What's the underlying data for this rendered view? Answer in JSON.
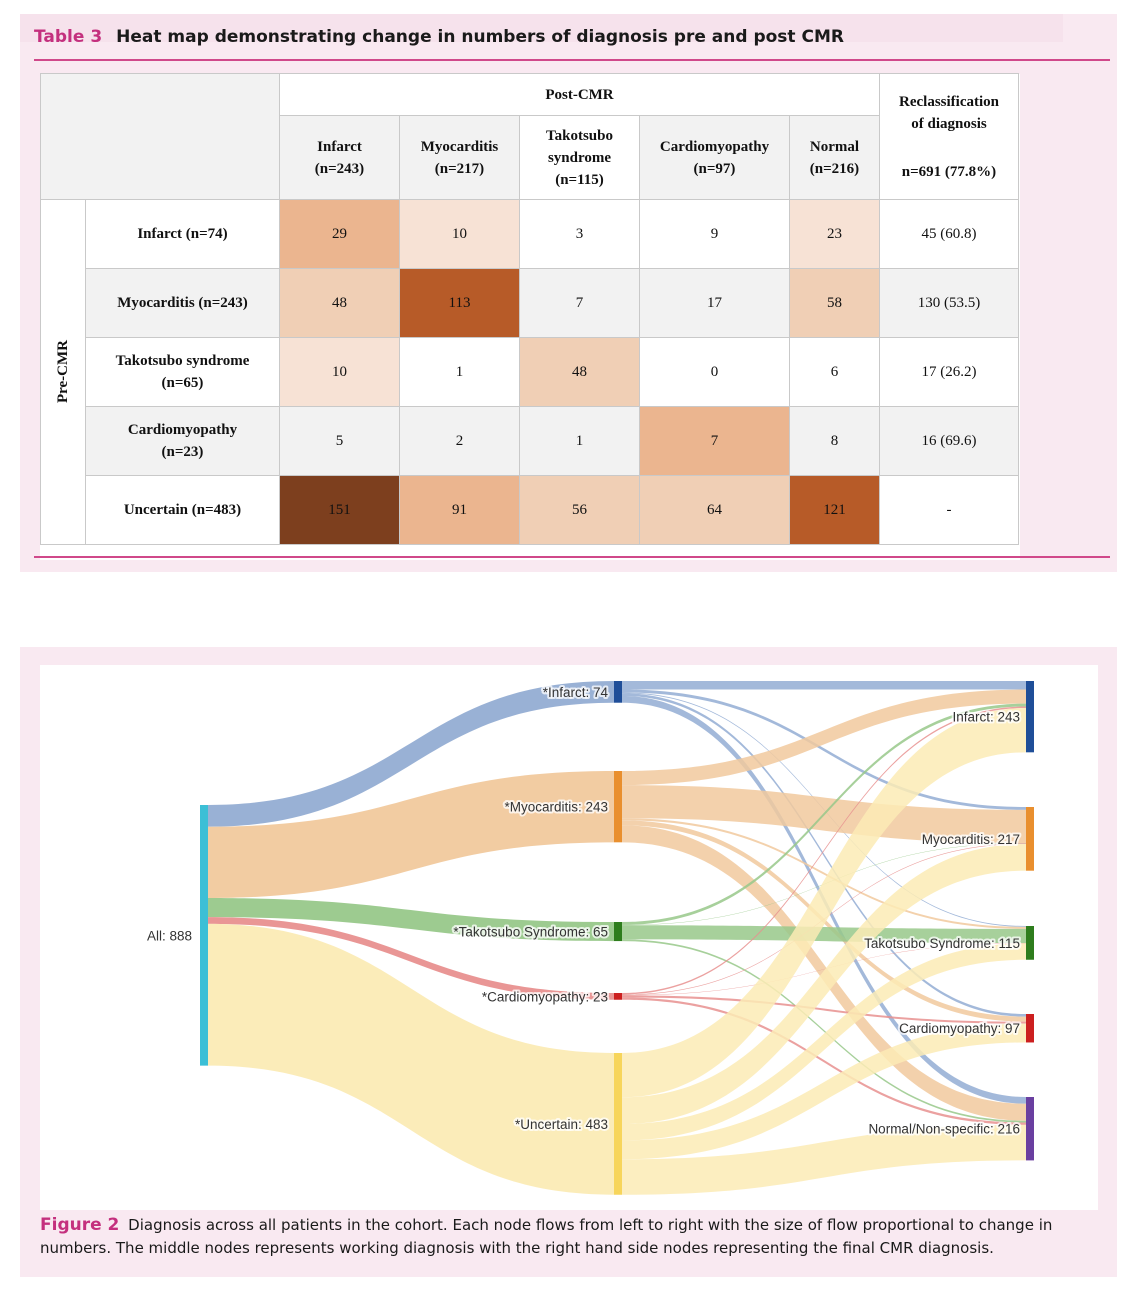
{
  "table": {
    "label": "Table 3",
    "title": "Heat map demonstrating change in numbers of diagnosis pre and post CMR",
    "post_header": "Post-CMR",
    "pre_header": "Pre-CMR",
    "reclass_header_1": "Reclassification",
    "reclass_header_2": "of diagnosis",
    "reclass_total": "n=691 (77.8%)",
    "columns": [
      {
        "l1": "Infarct",
        "l2": "",
        "l3": "(n=243)"
      },
      {
        "l1": "Myocarditis",
        "l2": "",
        "l3": "(n=217)"
      },
      {
        "l1": "Takotsubo",
        "l2": "syndrome",
        "l3": "(n=115)"
      },
      {
        "l1": "Cardiomyopathy",
        "l2": "",
        "l3": "(n=97)"
      },
      {
        "l1": "Normal",
        "l2": "",
        "l3": "(n=216)"
      }
    ],
    "rows": [
      {
        "l1": "Infarct (n=74)",
        "l2": "",
        "values": [
          "29",
          "10",
          "3",
          "9",
          "23"
        ],
        "reclass": "45 (60.8)"
      },
      {
        "l1": "Myocarditis (n=243)",
        "l2": "",
        "values": [
          "48",
          "113",
          "7",
          "17",
          "58"
        ],
        "reclass": "130 (53.5)"
      },
      {
        "l1": "Takotsubo syndrome",
        "l2": "(n=65)",
        "values": [
          "10",
          "1",
          "48",
          "0",
          "6"
        ],
        "reclass": "17 (26.2)"
      },
      {
        "l1": "Cardiomyopathy",
        "l2": "(n=23)",
        "values": [
          "5",
          "2",
          "1",
          "7",
          "8"
        ],
        "reclass": "16 (69.6)"
      },
      {
        "l1": "Uncertain (n=483)",
        "l2": "",
        "values": [
          "151",
          "91",
          "56",
          "64",
          "121"
        ],
        "reclass": "-"
      }
    ],
    "cell_colors": [
      [
        "#ebb58f",
        "#f7e2d5",
        "#ffffff",
        "#ffffff",
        "#f7e2d5"
      ],
      [
        "#f0cfb5",
        "#b75b28",
        "#f2f2f2",
        "#f2f2f2",
        "#f0cfb5"
      ],
      [
        "#f7e2d5",
        "#ffffff",
        "#f0cfb5",
        "#ffffff",
        "#ffffff"
      ],
      [
        "#f2f2f2",
        "#f2f2f2",
        "#f2f2f2",
        "#ebb58f",
        "#f2f2f2"
      ],
      [
        "#7d3f1e",
        "#ebb58f",
        "#f0cfb5",
        "#f0cfb5",
        "#b75b28"
      ]
    ]
  },
  "figure": {
    "label": "Figure 2",
    "caption": "Diagnosis across all patients in the cohort. Each node flows from left to right with the size of flow proportional to change in numbers. The middle nodes represents working diagnosis with the right hand side nodes representing the final CMR diagnosis.",
    "chart_data": {
      "type": "sankey",
      "source_node": {
        "label": "All: 888",
        "value": 888,
        "color": "#3cbfd6"
      },
      "middle_nodes": [
        {
          "id": "inf",
          "label": "*Infarct: 74",
          "value": 74,
          "color": "#1f4e98",
          "flow": "#93add3"
        },
        {
          "id": "myo",
          "label": "*Myocarditis: 243",
          "value": 243,
          "color": "#e98f2e",
          "flow": "#f1c99d"
        },
        {
          "id": "tak",
          "label": "*Takotsubo Syndrome: 65",
          "value": 65,
          "color": "#2e7d1d",
          "flow": "#98c88a"
        },
        {
          "id": "car",
          "label": "*Cardiomyopathy: 23",
          "value": 23,
          "color": "#cc1f1f",
          "flow": "#e8908f"
        },
        {
          "id": "unc",
          "label": "*Uncertain: 483",
          "value": 483,
          "color": "#f7d55b",
          "flow": "#fbebb5"
        }
      ],
      "final_nodes": [
        {
          "id": "inf",
          "label": "Infarct: 243",
          "value": 243,
          "color": "#1f4e98",
          "flow": "#93add3"
        },
        {
          "id": "myo",
          "label": "Myocarditis: 217",
          "value": 217,
          "color": "#e98f2e",
          "flow": "#f1c99d"
        },
        {
          "id": "tak",
          "label": "Takotsubo Syndrome: 115",
          "value": 115,
          "color": "#2e7d1d",
          "flow": "#98c88a"
        },
        {
          "id": "car",
          "label": "Cardiomyopathy: 97",
          "value": 97,
          "color": "#cc1f1f",
          "flow": "#e8908f"
        },
        {
          "id": "nor",
          "label": "Normal/Non-specific: 216",
          "value": 216,
          "color": "#6a3fa0",
          "flow": "#b79ad6"
        }
      ],
      "matrix": [
        [
          29,
          10,
          3,
          9,
          23
        ],
        [
          48,
          113,
          7,
          17,
          58
        ],
        [
          10,
          1,
          48,
          0,
          6
        ],
        [
          5,
          2,
          1,
          7,
          8
        ],
        [
          151,
          91,
          56,
          64,
          121
        ]
      ]
    }
  }
}
